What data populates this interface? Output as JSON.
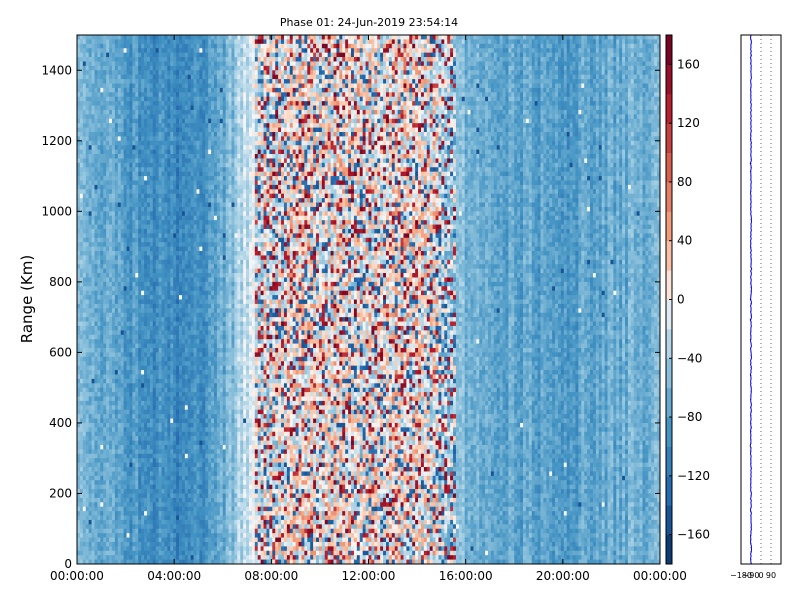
{
  "chart_data": [
    {
      "type": "heatmap",
      "title": "Phase 01: 24-Jun-2019 23:54:14",
      "xlabel": "",
      "ylabel": "Range (Km)",
      "x_ticks": [
        "00:00:00",
        "04:00:00",
        "08:00:00",
        "12:00:00",
        "16:00:00",
        "20:00:00",
        "00:00:00"
      ],
      "x_range": [
        "00:00:00",
        "24:00:00"
      ],
      "y_ticks": [
        0,
        200,
        400,
        600,
        800,
        1000,
        1200,
        1400
      ],
      "ylim": [
        0,
        1500
      ],
      "colorbar": {
        "colormap": "RdBu_r",
        "range": [
          -180,
          180
        ],
        "ticks": [
          -160,
          -120,
          -80,
          -40,
          0,
          40,
          80,
          120,
          160
        ]
      },
      "hour_profile": [
        {
          "h": 0,
          "v": -60
        },
        {
          "h": 1,
          "v": -70
        },
        {
          "h": 2,
          "v": -80
        },
        {
          "h": 3,
          "v": -90
        },
        {
          "h": 4,
          "v": -100
        },
        {
          "h": 5,
          "v": -95
        },
        {
          "h": 6,
          "v": -70
        },
        {
          "h": 7,
          "v": -20
        },
        {
          "h": 8,
          "v": 0
        },
        {
          "h": 9,
          "v": 10
        },
        {
          "h": 10,
          "v": 10
        },
        {
          "h": 11,
          "v": 5
        },
        {
          "h": 12,
          "v": 0
        },
        {
          "h": 13,
          "v": 10
        },
        {
          "h": 14,
          "v": 5
        },
        {
          "h": 15,
          "v": -10
        },
        {
          "h": 16,
          "v": -60
        },
        {
          "h": 17,
          "v": -70
        },
        {
          "h": 18,
          "v": -75
        },
        {
          "h": 19,
          "v": -75
        },
        {
          "h": 20,
          "v": -80
        },
        {
          "h": 21,
          "v": -75
        },
        {
          "h": 22,
          "v": -70
        },
        {
          "h": 23,
          "v": -65
        },
        {
          "h": 24,
          "v": -60
        }
      ],
      "noisy_hours": [
        7.3,
        15.6
      ]
    },
    {
      "type": "line",
      "title": "",
      "xlabel": "",
      "ylabel": "",
      "x_ticks": [
        "−180",
        "−90",
        "0",
        "90"
      ],
      "xlim": [
        -180,
        180
      ],
      "ylim": [
        0,
        1500
      ],
      "grid": "vertical-dotted",
      "series": [
        {
          "color": "#0000cc",
          "mean": -90
        }
      ]
    }
  ]
}
